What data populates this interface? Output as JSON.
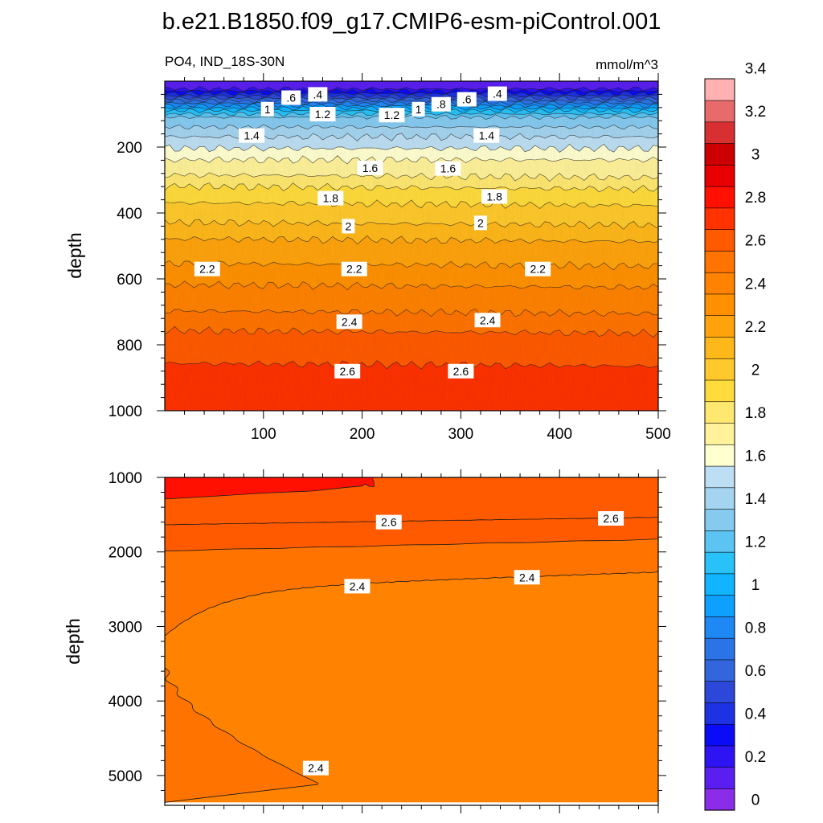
{
  "figure": {
    "title": "b.e21.B1850.f09_g17.CMIP6-esm-piControl.001",
    "subtitle_left": "PO4, IND_18S-30N",
    "subtitle_right": "mmol/m^3"
  },
  "chart_data": [
    {
      "type": "contour",
      "panel": "upper",
      "ylabel": "depth",
      "xlabel": "",
      "xlim": [
        0,
        500
      ],
      "ylim": [
        1000,
        0
      ],
      "y_inverted": true,
      "x_ticks": [
        "100",
        "200",
        "300",
        "400",
        "500"
      ],
      "y_ticks": [
        "200",
        "400",
        "600",
        "800",
        "1000"
      ],
      "contour_labels": [
        {
          "text": ".4",
          "x": 155,
          "y": 40
        },
        {
          "text": ".6",
          "x": 128,
          "y": 50
        },
        {
          "text": "1",
          "x": 104,
          "y": 85
        },
        {
          "text": "1.2",
          "x": 160,
          "y": 100
        },
        {
          "text": "1.4",
          "x": 88,
          "y": 165
        },
        {
          "text": "1.2",
          "x": 230,
          "y": 103
        },
        {
          "text": "1",
          "x": 257,
          "y": 85
        },
        {
          "text": ".8",
          "x": 280,
          "y": 70
        },
        {
          "text": ".6",
          "x": 306,
          "y": 55
        },
        {
          "text": ".4",
          "x": 337,
          "y": 38
        },
        {
          "text": "1.4",
          "x": 326,
          "y": 165
        },
        {
          "text": "1.6",
          "x": 208,
          "y": 263
        },
        {
          "text": "1.6",
          "x": 287,
          "y": 265
        },
        {
          "text": "1.8",
          "x": 168,
          "y": 355
        },
        {
          "text": "1.8",
          "x": 334,
          "y": 350
        },
        {
          "text": "2",
          "x": 186,
          "y": 440
        },
        {
          "text": "2",
          "x": 320,
          "y": 430
        },
        {
          "text": "2.2",
          "x": 43,
          "y": 570
        },
        {
          "text": "2.2",
          "x": 192,
          "y": 570
        },
        {
          "text": "2.2",
          "x": 378,
          "y": 570
        },
        {
          "text": "2.4",
          "x": 187,
          "y": 730
        },
        {
          "text": "2.4",
          "x": 327,
          "y": 725
        },
        {
          "text": "2.6",
          "x": 185,
          "y": 880
        },
        {
          "text": "2.6",
          "x": 300,
          "y": 880
        }
      ]
    },
    {
      "type": "contour",
      "panel": "lower",
      "ylabel": "depth",
      "xlabel": "",
      "xlim": [
        0,
        500
      ],
      "ylim": [
        5400,
        1000
      ],
      "y_inverted": true,
      "x_ticks": [],
      "y_ticks": [
        "1000",
        "2000",
        "3000",
        "4000",
        "5000"
      ],
      "contour_labels": [
        {
          "text": "2.6",
          "x": 227,
          "y": 1600
        },
        {
          "text": "2.6",
          "x": 452,
          "y": 1550
        },
        {
          "text": "2.4",
          "x": 195,
          "y": 2460
        },
        {
          "text": "2.4",
          "x": 367,
          "y": 2340
        },
        {
          "text": "2.4",
          "x": 153,
          "y": 4900
        }
      ]
    }
  ],
  "colorbar": {
    "tick_labels": [
      "0",
      "0.2",
      "0.4",
      "0.6",
      "0.8",
      "1",
      "1.2",
      "1.4",
      "1.6",
      "1.8",
      "2",
      "2.2",
      "2.4",
      "2.6",
      "2.8",
      "3",
      "3.2",
      "3.4"
    ],
    "colors": [
      "#8a2ce8",
      "#5a1ff0",
      "#2e14f2",
      "#0a0cf5",
      "#1d32e3",
      "#2c48d8",
      "#3366dd",
      "#2a74e8",
      "#1e88f5",
      "#0ea0ff",
      "#10b4ff",
      "#28c2f8",
      "#5cc4f2",
      "#86caf0",
      "#a4d4f0",
      "#bddff3",
      "#ffffd0",
      "#fff29a",
      "#ffe870",
      "#ffdc3c",
      "#ffc92c",
      "#ffb81a",
      "#ffa30c",
      "#ff9100",
      "#ff8200",
      "#ff7400",
      "#ff5a00",
      "#ff3200",
      "#ff1000",
      "#e80000",
      "#cc0000",
      "#d83030",
      "#e86a6a",
      "#ffb0b0"
    ]
  }
}
